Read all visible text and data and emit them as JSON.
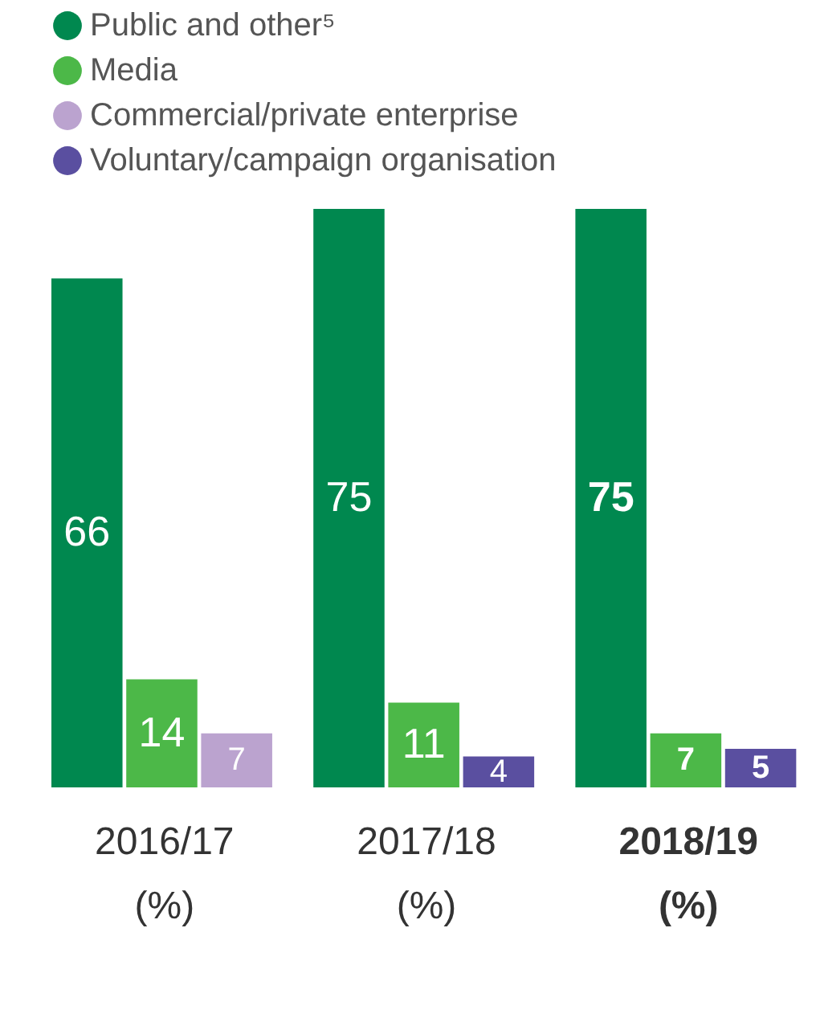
{
  "chart_data": {
    "type": "bar",
    "categories": [
      "2016/17\n(%)",
      "2017/18\n(%)",
      "2018/19\n(%)"
    ],
    "series": [
      {
        "name": "Public and other⁵",
        "color": "#00884f",
        "values": [
          66,
          75,
          75
        ]
      },
      {
        "name": "Media",
        "color": "#4cb848",
        "values": [
          14,
          11,
          7
        ]
      },
      {
        "name": "Commercial/private enterprise",
        "color": "#bba3cf",
        "values": [
          7,
          null,
          null
        ]
      },
      {
        "name": "Voluntary/campaign organisation",
        "color": "#5a4fa0",
        "values": [
          null,
          4,
          5
        ]
      }
    ],
    "data_labels": true,
    "legend": "top left",
    "grid": false
  }
}
